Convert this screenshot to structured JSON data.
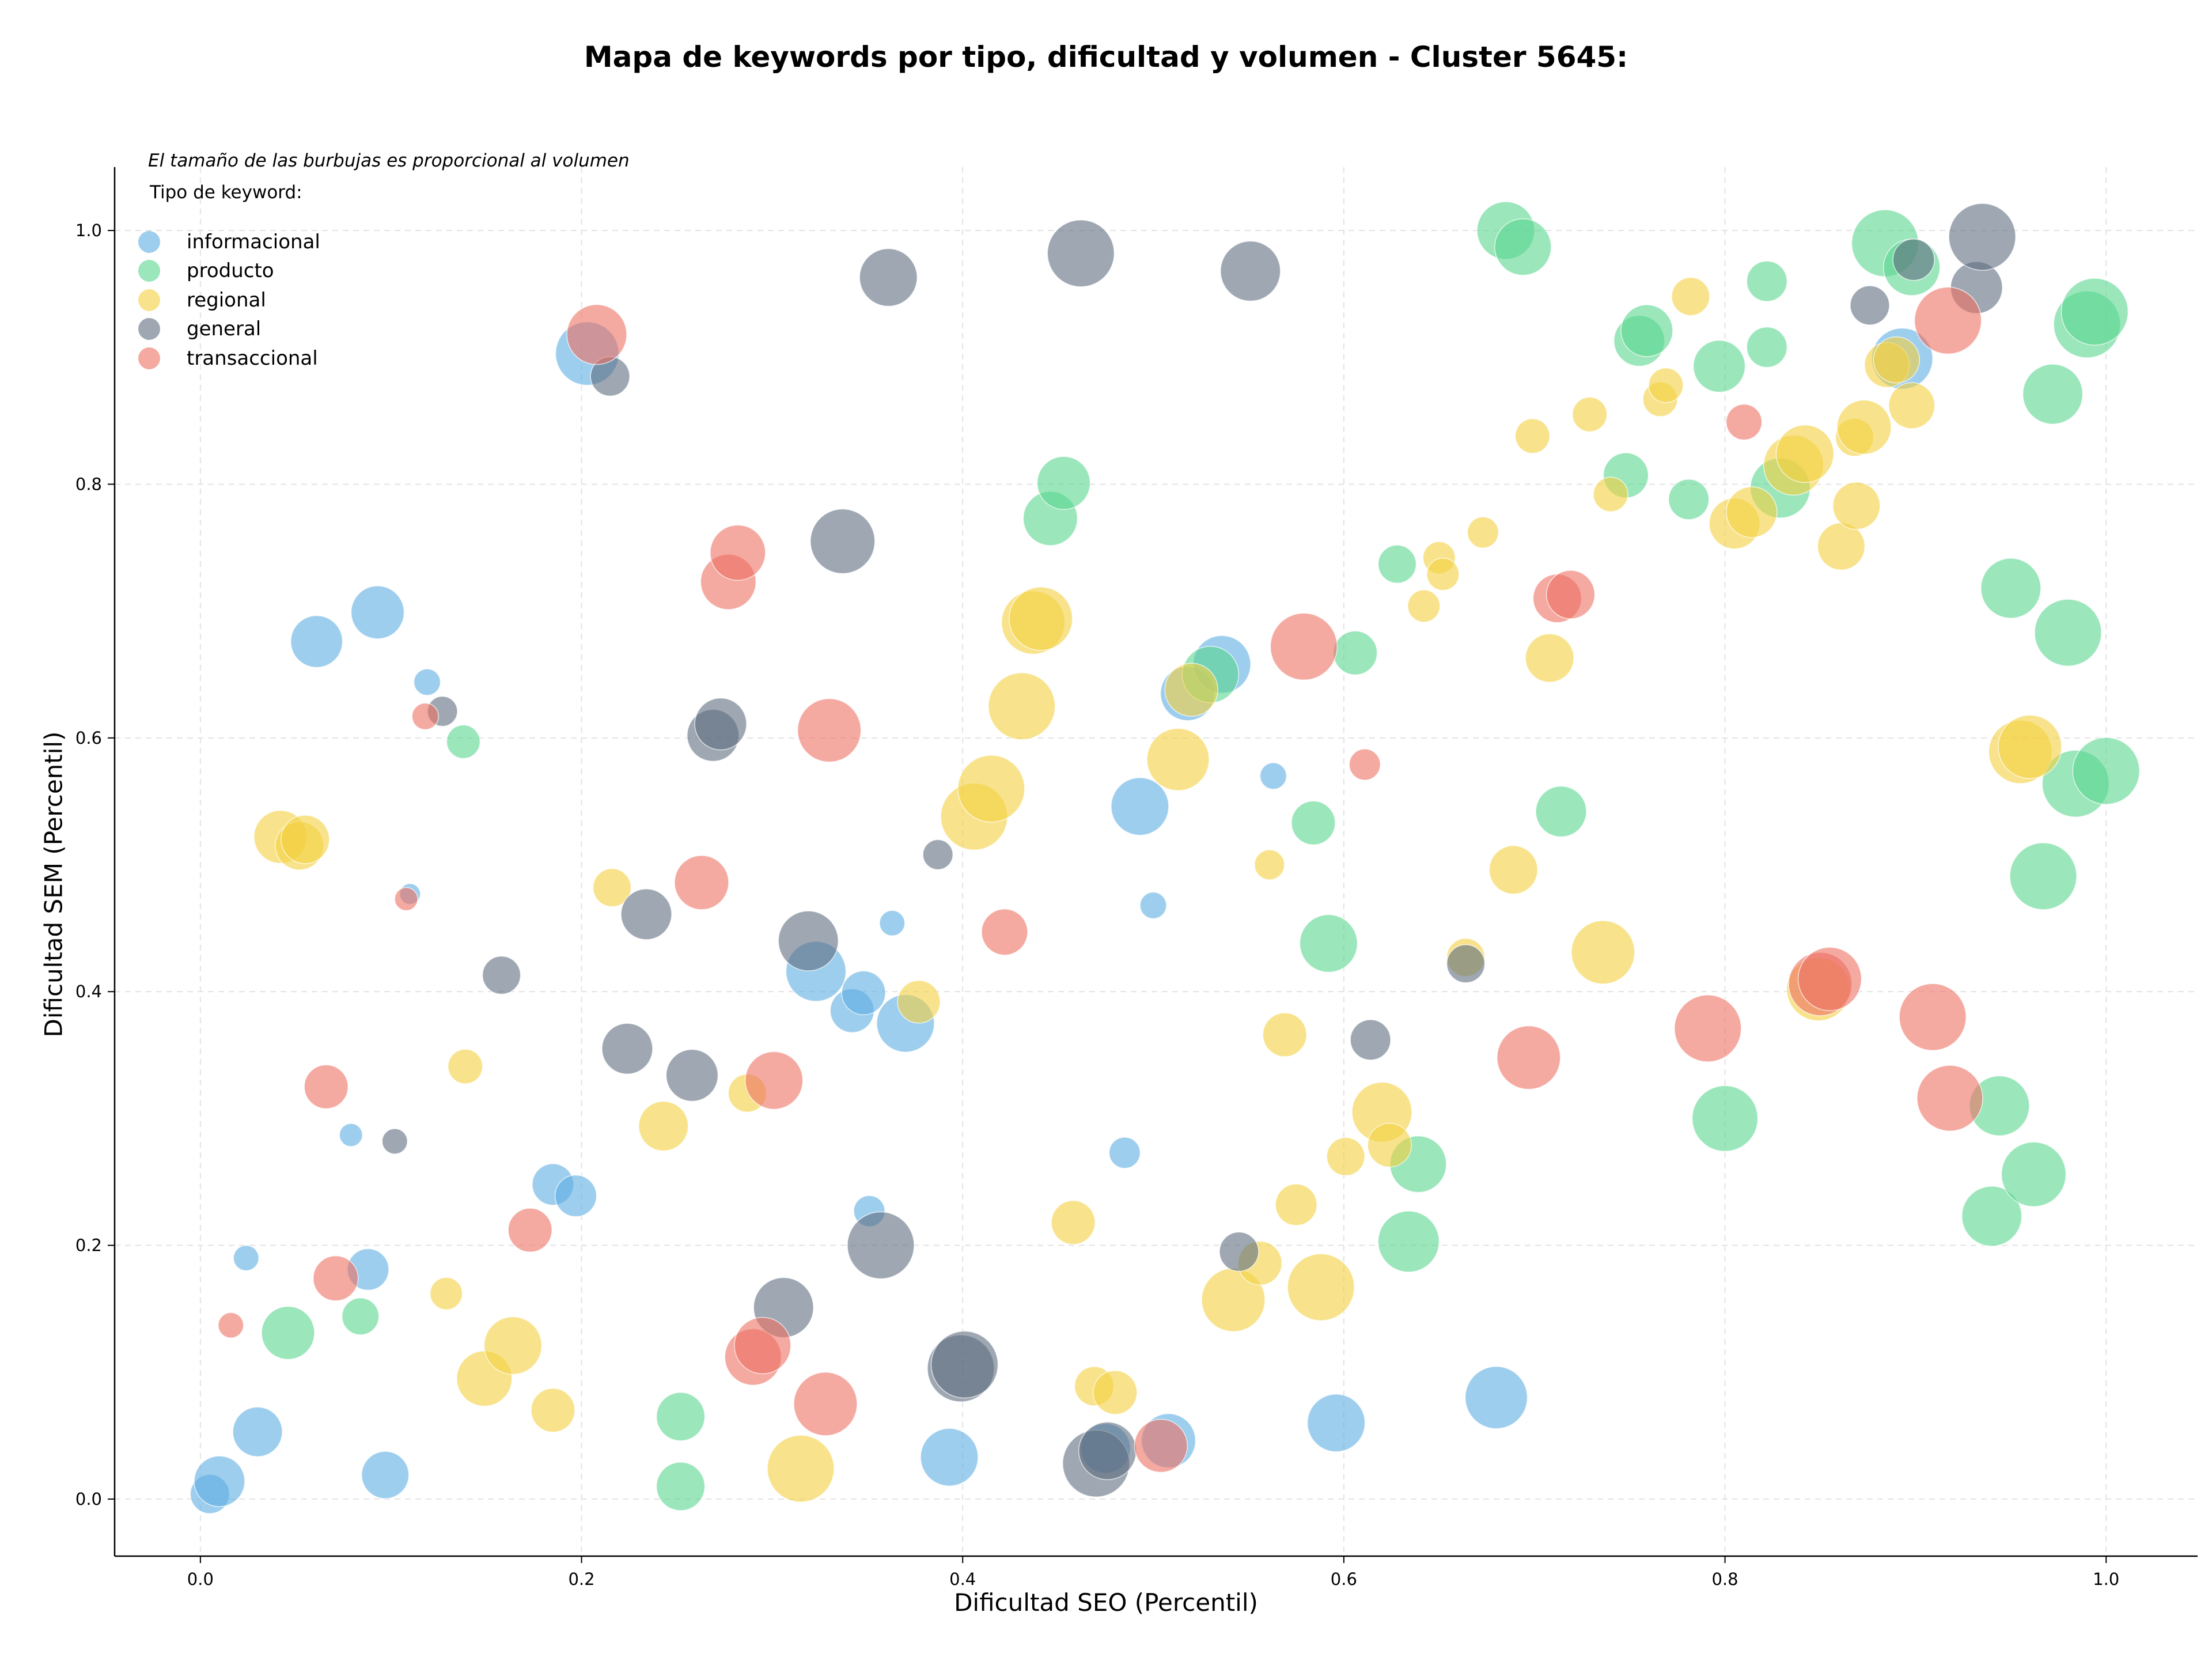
{
  "chart_data": {
    "type": "scatter",
    "title": "Mapa de keywords por tipo, dificultad y volumen - Cluster 5645:",
    "xlabel": "Dificultad SEO (Percentil)",
    "ylabel": "Dificultad SEM (Percentil)",
    "xlim": [
      -0.045,
      1.048
    ],
    "ylim": [
      -0.045,
      1.05
    ],
    "xticks": [
      "0.0",
      "0.2",
      "0.4",
      "0.6",
      "0.8",
      "1.0"
    ],
    "yticks": [
      "0.0",
      "0.2",
      "0.4",
      "0.6",
      "0.8",
      "1.0"
    ],
    "grid": true,
    "legend": {
      "placement": "top-left",
      "note": "El tamaño de las burbujas es proporcional al volumen",
      "title": "Tipo de keyword:"
    },
    "series": [
      {
        "name": "informacional",
        "color": "#5dade2",
        "points": [
          [
            0.005,
            0.004,
            34
          ],
          [
            0.01,
            0.014,
            44
          ],
          [
            0.024,
            0.19,
            22
          ],
          [
            0.03,
            0.053,
            43
          ],
          [
            0.061,
            0.676,
            45
          ],
          [
            0.079,
            0.287,
            20
          ],
          [
            0.088,
            0.181,
            36
          ],
          [
            0.093,
            0.699,
            46
          ],
          [
            0.097,
            0.019,
            41
          ],
          [
            0.119,
            0.644,
            23
          ],
          [
            0.11,
            0.477,
            18
          ],
          [
            0.185,
            0.248,
            36
          ],
          [
            0.197,
            0.239,
            36
          ],
          [
            0.203,
            0.903,
            55
          ],
          [
            0.323,
            0.416,
            52
          ],
          [
            0.342,
            0.385,
            38
          ],
          [
            0.348,
            0.399,
            38
          ],
          [
            0.351,
            0.227,
            27
          ],
          [
            0.363,
            0.454,
            22
          ],
          [
            0.37,
            0.375,
            50
          ],
          [
            0.393,
            0.033,
            50
          ],
          [
            0.475,
            0.04,
            43
          ],
          [
            0.485,
            0.273,
            27
          ],
          [
            0.493,
            0.546,
            50
          ],
          [
            0.5,
            0.468,
            23
          ],
          [
            0.508,
            0.046,
            47
          ],
          [
            0.518,
            0.635,
            47
          ],
          [
            0.536,
            0.658,
            50
          ],
          [
            0.563,
            0.57,
            23
          ],
          [
            0.596,
            0.06,
            50
          ],
          [
            0.68,
            0.08,
            54
          ],
          [
            0.893,
            0.899,
            53
          ]
        ]
      },
      {
        "name": "producto",
        "color": "#58d68d",
        "points": [
          [
            0.046,
            0.131,
            46
          ],
          [
            0.084,
            0.144,
            32
          ],
          [
            0.138,
            0.597,
            29
          ],
          [
            0.252,
            0.065,
            42
          ],
          [
            0.252,
            0.01,
            42
          ],
          [
            0.446,
            0.773,
            47
          ],
          [
            0.453,
            0.801,
            46
          ],
          [
            0.53,
            0.65,
            49
          ],
          [
            0.584,
            0.533,
            38
          ],
          [
            0.592,
            0.438,
            50
          ],
          [
            0.606,
            0.667,
            38
          ],
          [
            0.628,
            0.737,
            33
          ],
          [
            0.634,
            0.203,
            53
          ],
          [
            0.639,
            0.264,
            49
          ],
          [
            0.685,
            1.0,
            50
          ],
          [
            0.694,
            0.987,
            49
          ],
          [
            0.714,
            0.542,
            44
          ],
          [
            0.748,
            0.807,
            39
          ],
          [
            0.755,
            0.913,
            44
          ],
          [
            0.759,
            0.921,
            45
          ],
          [
            0.781,
            0.788,
            35
          ],
          [
            0.797,
            0.893,
            45
          ],
          [
            0.8,
            0.3,
            57
          ],
          [
            0.822,
            0.96,
            35
          ],
          [
            0.822,
            0.908,
            35
          ],
          [
            0.829,
            0.797,
            52
          ],
          [
            0.884,
            0.99,
            58
          ],
          [
            0.898,
            0.971,
            49
          ],
          [
            0.94,
            0.223,
            52
          ],
          [
            0.944,
            0.31,
            52
          ],
          [
            0.95,
            0.718,
            52
          ],
          [
            0.962,
            0.256,
            56
          ],
          [
            0.967,
            0.491,
            58
          ],
          [
            0.972,
            0.871,
            52
          ],
          [
            0.98,
            0.683,
            58
          ],
          [
            0.984,
            0.564,
            58
          ],
          [
            0.99,
            0.926,
            58
          ],
          [
            0.994,
            0.936,
            58
          ],
          [
            1.0,
            0.574,
            58
          ]
        ]
      },
      {
        "name": "regional",
        "color": "#f4d03f",
        "points": [
          [
            0.042,
            0.522,
            46
          ],
          [
            0.052,
            0.515,
            42
          ],
          [
            0.055,
            0.52,
            42
          ],
          [
            0.129,
            0.162,
            28
          ],
          [
            0.139,
            0.341,
            30
          ],
          [
            0.149,
            0.095,
            48
          ],
          [
            0.164,
            0.121,
            50
          ],
          [
            0.185,
            0.07,
            38
          ],
          [
            0.216,
            0.482,
            33
          ],
          [
            0.243,
            0.294,
            43
          ],
          [
            0.287,
            0.32,
            33
          ],
          [
            0.315,
            0.024,
            58
          ],
          [
            0.377,
            0.392,
            37
          ],
          [
            0.406,
            0.538,
            58
          ],
          [
            0.415,
            0.56,
            58
          ],
          [
            0.431,
            0.625,
            58
          ],
          [
            0.437,
            0.691,
            55
          ],
          [
            0.441,
            0.694,
            55
          ],
          [
            0.458,
            0.218,
            38
          ],
          [
            0.469,
            0.089,
            34
          ],
          [
            0.48,
            0.084,
            38
          ],
          [
            0.513,
            0.583,
            54
          ],
          [
            0.52,
            0.638,
            46
          ],
          [
            0.542,
            0.157,
            55
          ],
          [
            0.556,
            0.186,
            38
          ],
          [
            0.561,
            0.5,
            26
          ],
          [
            0.569,
            0.366,
            38
          ],
          [
            0.575,
            0.232,
            36
          ],
          [
            0.588,
            0.167,
            58
          ],
          [
            0.601,
            0.27,
            33
          ],
          [
            0.62,
            0.305,
            52
          ],
          [
            0.624,
            0.279,
            38
          ],
          [
            0.642,
            0.704,
            28
          ],
          [
            0.65,
            0.742,
            28
          ],
          [
            0.652,
            0.729,
            28
          ],
          [
            0.664,
            0.427,
            33
          ],
          [
            0.673,
            0.762,
            27
          ],
          [
            0.689,
            0.496,
            42
          ],
          [
            0.699,
            0.838,
            30
          ],
          [
            0.708,
            0.663,
            42
          ],
          [
            0.729,
            0.855,
            30
          ],
          [
            0.736,
            0.431,
            55
          ],
          [
            0.74,
            0.792,
            30
          ],
          [
            0.766,
            0.867,
            30
          ],
          [
            0.769,
            0.878,
            30
          ],
          [
            0.782,
            0.948,
            33
          ],
          [
            0.805,
            0.769,
            44
          ],
          [
            0.814,
            0.778,
            44
          ],
          [
            0.836,
            0.815,
            52
          ],
          [
            0.842,
            0.824,
            50
          ],
          [
            0.849,
            0.402,
            55
          ],
          [
            0.861,
            0.751,
            41
          ],
          [
            0.868,
            0.837,
            33
          ],
          [
            0.869,
            0.783,
            41
          ],
          [
            0.873,
            0.845,
            47
          ],
          [
            0.885,
            0.894,
            39
          ],
          [
            0.89,
            0.898,
            40
          ],
          [
            0.898,
            0.862,
            40
          ],
          [
            0.955,
            0.589,
            55
          ],
          [
            0.96,
            0.593,
            55
          ]
        ]
      },
      {
        "name": "general",
        "color": "#5d6d7e",
        "points": [
          [
            0.102,
            0.282,
            22
          ],
          [
            0.127,
            0.621,
            26
          ],
          [
            0.215,
            0.885,
            34
          ],
          [
            0.158,
            0.413,
            33
          ],
          [
            0.224,
            0.355,
            44
          ],
          [
            0.234,
            0.461,
            44
          ],
          [
            0.258,
            0.334,
            45
          ],
          [
            0.269,
            0.602,
            45
          ],
          [
            0.273,
            0.611,
            45
          ],
          [
            0.306,
            0.151,
            52
          ],
          [
            0.319,
            0.44,
            52
          ],
          [
            0.337,
            0.755,
            56
          ],
          [
            0.357,
            0.2,
            58
          ],
          [
            0.361,
            0.963,
            50
          ],
          [
            0.387,
            0.508,
            26
          ],
          [
            0.399,
            0.103,
            58
          ],
          [
            0.401,
            0.106,
            58
          ],
          [
            0.462,
            0.982,
            58
          ],
          [
            0.47,
            0.028,
            58
          ],
          [
            0.476,
            0.038,
            50
          ],
          [
            0.545,
            0.195,
            34
          ],
          [
            0.551,
            0.968,
            52
          ],
          [
            0.614,
            0.362,
            35
          ],
          [
            0.664,
            0.422,
            33
          ],
          [
            0.876,
            0.941,
            34
          ],
          [
            0.899,
            0.977,
            36
          ],
          [
            0.932,
            0.955,
            45
          ],
          [
            0.935,
            0.995,
            58
          ]
        ]
      },
      {
        "name": "transaccional",
        "color": "#ec7063",
        "points": [
          [
            0.016,
            0.137,
            22
          ],
          [
            0.066,
            0.325,
            38
          ],
          [
            0.071,
            0.174,
            39
          ],
          [
            0.108,
            0.473,
            20
          ],
          [
            0.118,
            0.617,
            23
          ],
          [
            0.173,
            0.212,
            38
          ],
          [
            0.208,
            0.918,
            52
          ],
          [
            0.263,
            0.486,
            47
          ],
          [
            0.277,
            0.723,
            48
          ],
          [
            0.282,
            0.746,
            48
          ],
          [
            0.29,
            0.112,
            49
          ],
          [
            0.295,
            0.121,
            49
          ],
          [
            0.301,
            0.33,
            50
          ],
          [
            0.33,
            0.606,
            55
          ],
          [
            0.328,
            0.075,
            55
          ],
          [
            0.422,
            0.447,
            40
          ],
          [
            0.504,
            0.042,
            46
          ],
          [
            0.579,
            0.672,
            58
          ],
          [
            0.611,
            0.579,
            27
          ],
          [
            0.697,
            0.348,
            55
          ],
          [
            0.712,
            0.71,
            42
          ],
          [
            0.719,
            0.713,
            42
          ],
          [
            0.791,
            0.371,
            58
          ],
          [
            0.81,
            0.849,
            31
          ],
          [
            0.85,
            0.406,
            55
          ],
          [
            0.855,
            0.41,
            55
          ],
          [
            0.909,
            0.38,
            58
          ],
          [
            0.918,
            0.316,
            57
          ],
          [
            0.917,
            0.929,
            58
          ]
        ]
      }
    ]
  }
}
